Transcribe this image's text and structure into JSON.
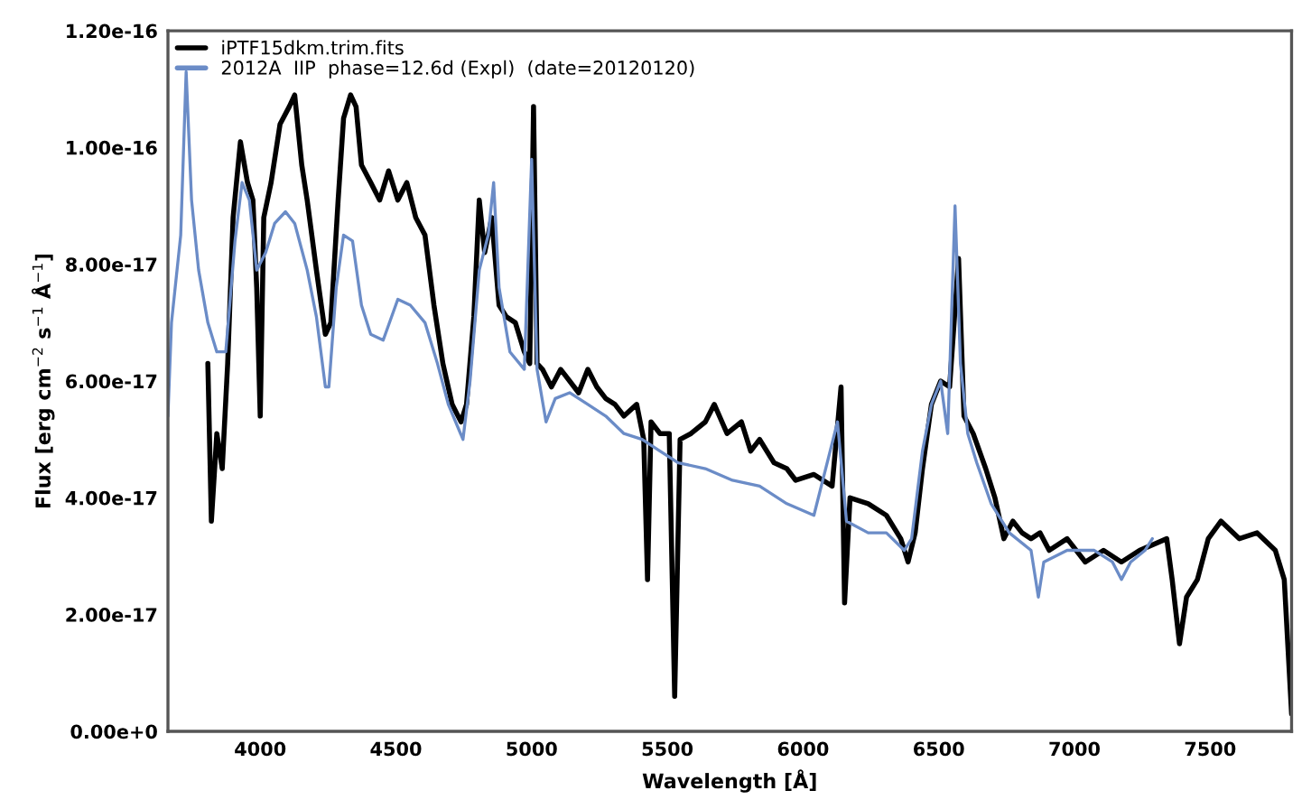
{
  "chart_data": {
    "type": "line",
    "xlabel": "Wavelength [Å]",
    "ylabel": "Flux [erg cm$^{−2}$ s$^{−1}$ Å$^{−1}$]",
    "xlim": [
      3660,
      7800
    ],
    "xticks": [
      4000,
      4500,
      5000,
      5500,
      6000,
      6500,
      7000,
      7500
    ],
    "ylim": [
      0,
      1.2e-16
    ],
    "yticks": [
      {
        "value": 0,
        "label": "0.00e+0"
      },
      {
        "value": 2e-17,
        "label": "2.00e-17"
      },
      {
        "value": 4e-17,
        "label": "4.00e-17"
      },
      {
        "value": 6e-17,
        "label": "6.00e-17"
      },
      {
        "value": 8e-17,
        "label": "8.00e-17"
      },
      {
        "value": 1e-16,
        "label": "1.00e-16"
      },
      {
        "value": 1.2e-16,
        "label": "1.20e-16"
      }
    ],
    "grid": false,
    "legend": "top left",
    "series": [
      {
        "name": "iPTF15dkm.trim.fits",
        "color": "#000000",
        "x": [
          3807,
          3820,
          3840,
          3860,
          3880,
          3900,
          3927,
          3953,
          3973,
          3987,
          4000,
          4013,
          4040,
          4073,
          4107,
          4127,
          4153,
          4173,
          4207,
          4240,
          4260,
          4287,
          4307,
          4333,
          4353,
          4373,
          4407,
          4440,
          4473,
          4507,
          4540,
          4573,
          4607,
          4640,
          4673,
          4707,
          4740,
          4760,
          4787,
          4807,
          4827,
          4853,
          4880,
          4907,
          4940,
          4973,
          4993,
          5007,
          5020,
          5040,
          5073,
          5107,
          5140,
          5173,
          5207,
          5240,
          5273,
          5307,
          5340,
          5387,
          5413,
          5427,
          5440,
          5473,
          5507,
          5527,
          5547,
          5587,
          5640,
          5673,
          5720,
          5773,
          5807,
          5840,
          5893,
          5940,
          5973,
          6040,
          6107,
          6140,
          6153,
          6173,
          6240,
          6307,
          6360,
          6387,
          6413,
          6440,
          6473,
          6507,
          6540,
          6573,
          6593,
          6627,
          6673,
          6707,
          6740,
          6773,
          6807,
          6840,
          6873,
          6907,
          6973,
          7040,
          7107,
          7173,
          7240,
          7340,
          7360,
          7387,
          7413,
          7453,
          7493,
          7540,
          7607,
          7673,
          7740,
          7773,
          7800
        ],
        "values": [
          6.3e-17,
          3.6e-17,
          5.1e-17,
          4.5e-17,
          6.3e-17,
          8.8e-17,
          1.01e-16,
          9.4e-17,
          9.1e-17,
          7.6e-17,
          5.4e-17,
          8.8e-17,
          9.4e-17,
          1.04e-16,
          1.07e-16,
          1.09e-16,
          9.7e-17,
          9.1e-17,
          7.9e-17,
          6.8e-17,
          7e-17,
          9.1e-17,
          1.05e-16,
          1.09e-16,
          1.07e-16,
          9.7e-17,
          9.4e-17,
          9.1e-17,
          9.6e-17,
          9.1e-17,
          9.4e-17,
          8.8e-17,
          8.5e-17,
          7.3e-17,
          6.3e-17,
          5.6e-17,
          5.3e-17,
          5.6e-17,
          7.1e-17,
          9.1e-17,
          8.2e-17,
          8.8e-17,
          7.3e-17,
          7.1e-17,
          7e-17,
          6.5e-17,
          6.3e-17,
          1.07e-16,
          6.3e-17,
          6.2e-17,
          5.9e-17,
          6.2e-17,
          6e-17,
          5.8e-17,
          6.2e-17,
          5.9e-17,
          5.7e-17,
          5.6e-17,
          5.4e-17,
          5.6e-17,
          5e-17,
          2.6e-17,
          5.3e-17,
          5.1e-17,
          5.1e-17,
          6e-18,
          5e-17,
          5.1e-17,
          5.3e-17,
          5.6e-17,
          5.1e-17,
          5.3e-17,
          4.8e-17,
          5e-17,
          4.6e-17,
          4.5e-17,
          4.3e-17,
          4.4e-17,
          4.2e-17,
          5.9e-17,
          2.2e-17,
          4e-17,
          3.9e-17,
          3.7e-17,
          3.3e-17,
          2.9e-17,
          3.4e-17,
          4.5e-17,
          5.6e-17,
          6e-17,
          5.9e-17,
          8.1e-17,
          5.4e-17,
          5.1e-17,
          4.5e-17,
          4e-17,
          3.3e-17,
          3.6e-17,
          3.4e-17,
          3.3e-17,
          3.4e-17,
          3.1e-17,
          3.3e-17,
          2.9e-17,
          3.1e-17,
          2.9e-17,
          3.1e-17,
          3.3e-17,
          2.6e-17,
          1.5e-17,
          2.3e-17,
          2.6e-17,
          3.3e-17,
          3.6e-17,
          3.3e-17,
          3.4e-17,
          3.1e-17,
          2.6e-17,
          3e-18
        ]
      },
      {
        "name": "2012A  IIP  phase=12.6d (Expl)  (date=20120120)",
        "color": "#6b8cc7",
        "x": [
          3660,
          3673,
          3707,
          3727,
          3747,
          3773,
          3807,
          3840,
          3873,
          3907,
          3933,
          3960,
          3987,
          4020,
          4053,
          4093,
          4127,
          4173,
          4207,
          4240,
          4253,
          4280,
          4307,
          4340,
          4373,
          4407,
          4453,
          4507,
          4553,
          4607,
          4653,
          4693,
          4747,
          4773,
          4807,
          4840,
          4860,
          4880,
          4920,
          4973,
          5000,
          5020,
          5053,
          5087,
          5140,
          5207,
          5273,
          5340,
          5407,
          5473,
          5540,
          5640,
          5740,
          5840,
          5940,
          6040,
          6127,
          6160,
          6240,
          6307,
          6373,
          6400,
          6440,
          6473,
          6507,
          6533,
          6560,
          6580,
          6607,
          6640,
          6693,
          6760,
          6840,
          6867,
          6887,
          6973,
          7073,
          7140,
          7173,
          7207,
          7260,
          7287
        ],
        "values": [
          5.4e-17,
          7e-17,
          8.5e-17,
          1.13e-16,
          9.1e-17,
          7.9e-17,
          7e-17,
          6.5e-17,
          6.5e-17,
          8.4e-17,
          9.4e-17,
          9.1e-17,
          7.9e-17,
          8.2e-17,
          8.7e-17,
          8.9e-17,
          8.7e-17,
          7.9e-17,
          7.1e-17,
          5.9e-17,
          5.9e-17,
          7.6e-17,
          8.5e-17,
          8.4e-17,
          7.3e-17,
          6.8e-17,
          6.7e-17,
          7.4e-17,
          7.3e-17,
          7e-17,
          6.3e-17,
          5.6e-17,
          5e-17,
          6e-17,
          7.9e-17,
          8.5e-17,
          9.4e-17,
          7.6e-17,
          6.5e-17,
          6.2e-17,
          9.8e-17,
          6.2e-17,
          5.3e-17,
          5.7e-17,
          5.8e-17,
          5.6e-17,
          5.4e-17,
          5.1e-17,
          5e-17,
          4.8e-17,
          4.6e-17,
          4.5e-17,
          4.3e-17,
          4.2e-17,
          3.9e-17,
          3.7e-17,
          5.3e-17,
          3.6e-17,
          3.4e-17,
          3.4e-17,
          3.1e-17,
          3.3e-17,
          4.8e-17,
          5.6e-17,
          6e-17,
          5.1e-17,
          9e-17,
          6.3e-17,
          5.1e-17,
          4.6e-17,
          3.9e-17,
          3.4e-17,
          3.1e-17,
          2.3e-17,
          2.9e-17,
          3.1e-17,
          3.1e-17,
          2.9e-17,
          2.6e-17,
          2.9e-17,
          3.1e-17,
          3.3e-17
        ]
      }
    ]
  }
}
